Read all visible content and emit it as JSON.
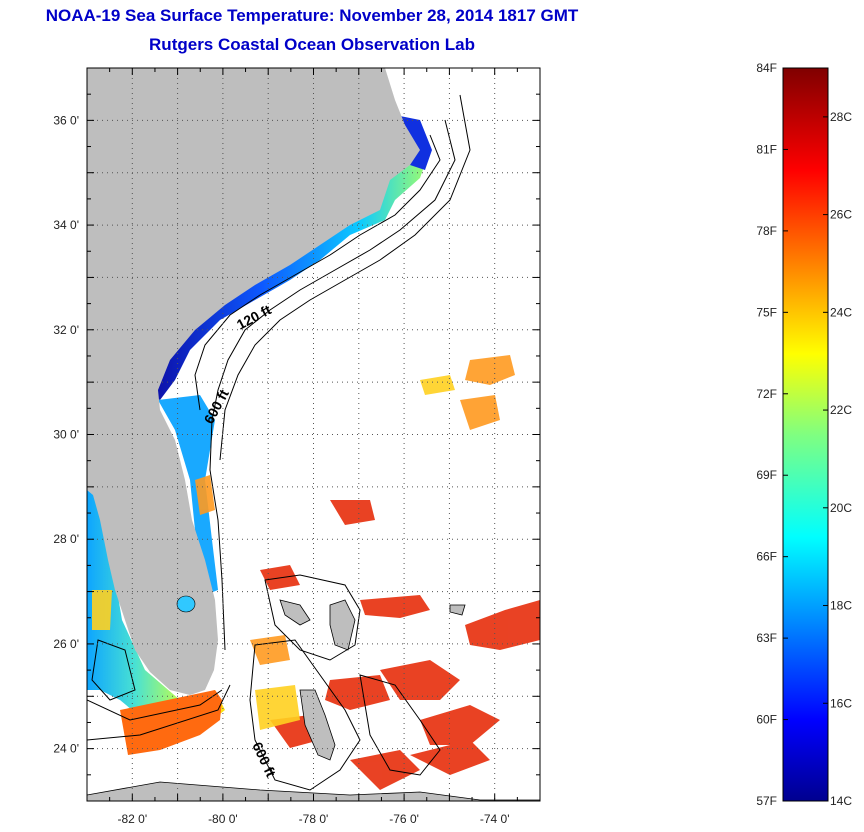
{
  "header": {
    "title": "NOAA-19 Sea Surface Temperature:  November 28, 2014 1817 GMT",
    "subtitle": "Rutgers Coastal Ocean Observation Lab"
  },
  "map": {
    "lon_range": [
      -83,
      -73
    ],
    "lat_range": [
      23,
      37
    ],
    "lon_ticks": [
      {
        "value": -82,
        "label": "-82 0'"
      },
      {
        "value": -80,
        "label": "-80 0'"
      },
      {
        "value": -78,
        "label": "-78 0'"
      },
      {
        "value": -76,
        "label": "-76 0'"
      },
      {
        "value": -74,
        "label": "-74 0'"
      }
    ],
    "lat_ticks": [
      {
        "value": 36,
        "label": "36 0'"
      },
      {
        "value": 34,
        "label": "34 0'"
      },
      {
        "value": 32,
        "label": "32 0'"
      },
      {
        "value": 30,
        "label": "30 0'"
      },
      {
        "value": 28,
        "label": "28 0'"
      },
      {
        "value": 26,
        "label": "26 0'"
      },
      {
        "value": 24,
        "label": "24 0'"
      }
    ],
    "contour_labels": [
      "120 ft",
      "600 ft",
      "600 ft"
    ],
    "colors": {
      "land": "#bebebe",
      "ocean_nodata": "#ffffff",
      "grid": "#555555",
      "contour": "#000000"
    }
  },
  "colorbar": {
    "min_c": 14,
    "max_c": 29,
    "fahrenheit_labels": [
      "84F",
      "81F",
      "78F",
      "75F",
      "72F",
      "69F",
      "66F",
      "63F",
      "60F",
      "57F"
    ],
    "celsius_labels": [
      "28C",
      "26C",
      "24C",
      "22C",
      "20C",
      "18C",
      "16C",
      "14C"
    ],
    "colormap": "jet"
  }
}
